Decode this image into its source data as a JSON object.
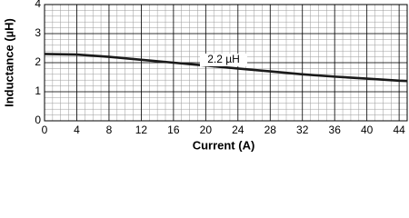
{
  "chart_data": {
    "type": "line",
    "x": [
      0,
      4,
      8,
      12,
      16,
      20,
      24,
      28,
      32,
      36,
      40,
      44,
      45
    ],
    "series": [
      {
        "name": "Inductance",
        "color": "#1a1a1a",
        "values": [
          2.3,
          2.28,
          2.2,
          2.1,
          2.0,
          1.9,
          1.8,
          1.7,
          1.6,
          1.52,
          1.45,
          1.38,
          1.37
        ]
      }
    ],
    "xlim": [
      0,
      45
    ],
    "ylim": [
      0,
      4
    ],
    "xticks": [
      0,
      4,
      8,
      12,
      16,
      20,
      24,
      28,
      32,
      36,
      40,
      44
    ],
    "yticks": [
      0,
      1,
      2,
      3,
      4
    ],
    "xlabel": "Current (A)",
    "ylabel": "Inductance (µH)",
    "annotation": "2.2 µH",
    "grid": true
  }
}
